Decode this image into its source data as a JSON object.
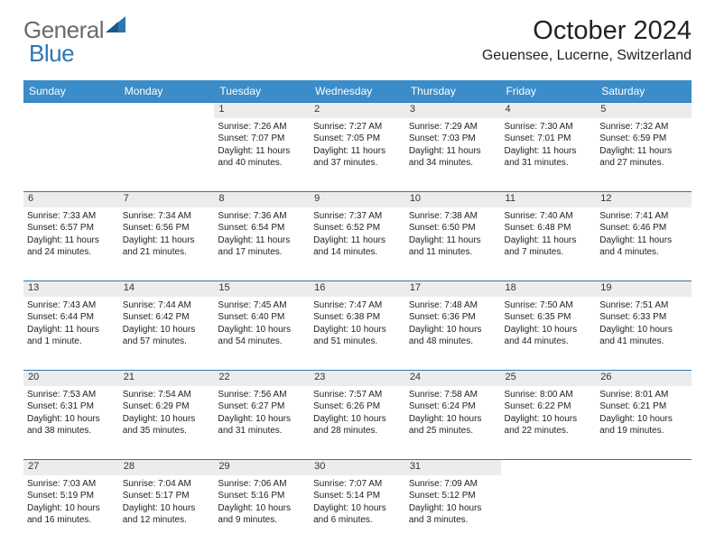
{
  "logo": {
    "text1": "General",
    "text2": "Blue"
  },
  "title": "October 2024",
  "location": "Geuensee, Lucerne, Switzerland",
  "colors": {
    "header_bg": "#3a8dc9",
    "header_text": "#ffffff",
    "daynum_bg": "#ececec",
    "row_border": "#2b77b5",
    "logo_grey": "#6b6b6b",
    "logo_blue": "#2b77b5"
  },
  "day_headers": [
    "Sunday",
    "Monday",
    "Tuesday",
    "Wednesday",
    "Thursday",
    "Friday",
    "Saturday"
  ],
  "weeks": [
    [
      null,
      null,
      {
        "n": "1",
        "sunrise": "7:26 AM",
        "sunset": "7:07 PM",
        "daylight": "11 hours and 40 minutes."
      },
      {
        "n": "2",
        "sunrise": "7:27 AM",
        "sunset": "7:05 PM",
        "daylight": "11 hours and 37 minutes."
      },
      {
        "n": "3",
        "sunrise": "7:29 AM",
        "sunset": "7:03 PM",
        "daylight": "11 hours and 34 minutes."
      },
      {
        "n": "4",
        "sunrise": "7:30 AM",
        "sunset": "7:01 PM",
        "daylight": "11 hours and 31 minutes."
      },
      {
        "n": "5",
        "sunrise": "7:32 AM",
        "sunset": "6:59 PM",
        "daylight": "11 hours and 27 minutes."
      }
    ],
    [
      {
        "n": "6",
        "sunrise": "7:33 AM",
        "sunset": "6:57 PM",
        "daylight": "11 hours and 24 minutes."
      },
      {
        "n": "7",
        "sunrise": "7:34 AM",
        "sunset": "6:56 PM",
        "daylight": "11 hours and 21 minutes."
      },
      {
        "n": "8",
        "sunrise": "7:36 AM",
        "sunset": "6:54 PM",
        "daylight": "11 hours and 17 minutes."
      },
      {
        "n": "9",
        "sunrise": "7:37 AM",
        "sunset": "6:52 PM",
        "daylight": "11 hours and 14 minutes."
      },
      {
        "n": "10",
        "sunrise": "7:38 AM",
        "sunset": "6:50 PM",
        "daylight": "11 hours and 11 minutes."
      },
      {
        "n": "11",
        "sunrise": "7:40 AM",
        "sunset": "6:48 PM",
        "daylight": "11 hours and 7 minutes."
      },
      {
        "n": "12",
        "sunrise": "7:41 AM",
        "sunset": "6:46 PM",
        "daylight": "11 hours and 4 minutes."
      }
    ],
    [
      {
        "n": "13",
        "sunrise": "7:43 AM",
        "sunset": "6:44 PM",
        "daylight": "11 hours and 1 minute."
      },
      {
        "n": "14",
        "sunrise": "7:44 AM",
        "sunset": "6:42 PM",
        "daylight": "10 hours and 57 minutes."
      },
      {
        "n": "15",
        "sunrise": "7:45 AM",
        "sunset": "6:40 PM",
        "daylight": "10 hours and 54 minutes."
      },
      {
        "n": "16",
        "sunrise": "7:47 AM",
        "sunset": "6:38 PM",
        "daylight": "10 hours and 51 minutes."
      },
      {
        "n": "17",
        "sunrise": "7:48 AM",
        "sunset": "6:36 PM",
        "daylight": "10 hours and 48 minutes."
      },
      {
        "n": "18",
        "sunrise": "7:50 AM",
        "sunset": "6:35 PM",
        "daylight": "10 hours and 44 minutes."
      },
      {
        "n": "19",
        "sunrise": "7:51 AM",
        "sunset": "6:33 PM",
        "daylight": "10 hours and 41 minutes."
      }
    ],
    [
      {
        "n": "20",
        "sunrise": "7:53 AM",
        "sunset": "6:31 PM",
        "daylight": "10 hours and 38 minutes."
      },
      {
        "n": "21",
        "sunrise": "7:54 AM",
        "sunset": "6:29 PM",
        "daylight": "10 hours and 35 minutes."
      },
      {
        "n": "22",
        "sunrise": "7:56 AM",
        "sunset": "6:27 PM",
        "daylight": "10 hours and 31 minutes."
      },
      {
        "n": "23",
        "sunrise": "7:57 AM",
        "sunset": "6:26 PM",
        "daylight": "10 hours and 28 minutes."
      },
      {
        "n": "24",
        "sunrise": "7:58 AM",
        "sunset": "6:24 PM",
        "daylight": "10 hours and 25 minutes."
      },
      {
        "n": "25",
        "sunrise": "8:00 AM",
        "sunset": "6:22 PM",
        "daylight": "10 hours and 22 minutes."
      },
      {
        "n": "26",
        "sunrise": "8:01 AM",
        "sunset": "6:21 PM",
        "daylight": "10 hours and 19 minutes."
      }
    ],
    [
      {
        "n": "27",
        "sunrise": "7:03 AM",
        "sunset": "5:19 PM",
        "daylight": "10 hours and 16 minutes."
      },
      {
        "n": "28",
        "sunrise": "7:04 AM",
        "sunset": "5:17 PM",
        "daylight": "10 hours and 12 minutes."
      },
      {
        "n": "29",
        "sunrise": "7:06 AM",
        "sunset": "5:16 PM",
        "daylight": "10 hours and 9 minutes."
      },
      {
        "n": "30",
        "sunrise": "7:07 AM",
        "sunset": "5:14 PM",
        "daylight": "10 hours and 6 minutes."
      },
      {
        "n": "31",
        "sunrise": "7:09 AM",
        "sunset": "5:12 PM",
        "daylight": "10 hours and 3 minutes."
      },
      null,
      null
    ]
  ]
}
